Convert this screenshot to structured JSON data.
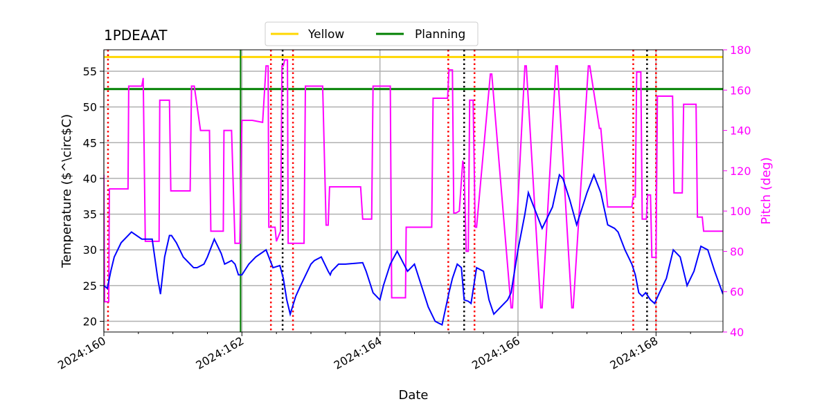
{
  "chart_data": {
    "type": "line",
    "title": "1PDEAAT",
    "xlabel": "Date",
    "ylabel": "Temperature ($^\\circ$C)",
    "y2label": "Pitch (deg)",
    "xlim": [
      160.0,
      168.97
    ],
    "ylim": [
      18.5,
      58.0
    ],
    "y2lim": [
      40,
      180
    ],
    "xticks": [
      160,
      162,
      164,
      166,
      168
    ],
    "xticklabels": [
      "2024:160",
      "2024:162",
      "2024:164",
      "2024:166",
      "2024:168"
    ],
    "yticks": [
      20,
      25,
      30,
      35,
      40,
      45,
      50,
      55
    ],
    "y2ticks": [
      40,
      60,
      80,
      100,
      120,
      140,
      160,
      180
    ],
    "grid": true,
    "legend": {
      "placement": "top-center",
      "entries": [
        {
          "label": "Yellow",
          "color": "#ffd700"
        },
        {
          "label": "Planning",
          "color": "#008000"
        }
      ]
    },
    "limits": [
      {
        "name": "Yellow",
        "value": 57.0,
        "color": "#ffd700"
      },
      {
        "name": "Planning",
        "value": 52.5,
        "color": "#008000"
      }
    ],
    "now_line": {
      "x": 161.98,
      "color": "#008000"
    },
    "red_vlines": [
      160.06,
      162.42,
      162.74,
      164.99,
      165.37,
      167.67,
      168.0
    ],
    "black_vlines": [
      162.59,
      165.22,
      167.87
    ],
    "series": [
      {
        "name": "Temperature",
        "axis": "left",
        "color": "#0000ff",
        "x": [
          160.0,
          160.05,
          160.1,
          160.15,
          160.25,
          160.4,
          160.55,
          160.62,
          160.7,
          160.78,
          160.82,
          160.88,
          160.95,
          160.98,
          161.05,
          161.15,
          161.25,
          161.3,
          161.35,
          161.45,
          161.5,
          161.6,
          161.7,
          161.75,
          161.85,
          161.9,
          161.95,
          162.0,
          162.1,
          162.2,
          162.35,
          162.45,
          162.55,
          162.6,
          162.65,
          162.7,
          162.78,
          162.85,
          162.9,
          163.0,
          163.05,
          163.15,
          163.25,
          163.28,
          163.3,
          163.4,
          163.5,
          163.75,
          163.8,
          163.9,
          164.0,
          164.05,
          164.15,
          164.25,
          164.4,
          164.5,
          164.6,
          164.7,
          164.8,
          164.9,
          165.0,
          165.05,
          165.12,
          165.18,
          165.22,
          165.28,
          165.32,
          165.4,
          165.5,
          165.58,
          165.65,
          165.75,
          165.85,
          165.9,
          166.0,
          166.1,
          166.15,
          166.25,
          166.35,
          166.5,
          166.6,
          166.65,
          166.75,
          166.85,
          167.0,
          167.1,
          167.2,
          167.3,
          167.4,
          167.45,
          167.55,
          167.65,
          167.7,
          167.75,
          167.8,
          167.85,
          167.92,
          167.98,
          168.05,
          168.15,
          168.25,
          168.35,
          168.45,
          168.55,
          168.65,
          168.75,
          168.85,
          168.97
        ],
        "y": [
          25.0,
          24.6,
          27.0,
          29.0,
          31.0,
          32.5,
          31.5,
          31.5,
          31.5,
          26.0,
          23.8,
          29.0,
          32.0,
          32.0,
          31.0,
          29.0,
          28.0,
          27.5,
          27.5,
          28.0,
          29.0,
          31.5,
          29.5,
          28.0,
          28.5,
          28.0,
          26.5,
          26.5,
          28.0,
          29.0,
          30.0,
          27.5,
          27.8,
          26.0,
          23.0,
          21.0,
          23.5,
          25.0,
          26.0,
          28.0,
          28.5,
          29.0,
          27.0,
          26.5,
          27.0,
          28.0,
          28.0,
          28.2,
          27.0,
          24.0,
          23.0,
          25.0,
          28.0,
          29.8,
          27.0,
          28.0,
          25.0,
          22.0,
          20.0,
          19.5,
          24.0,
          26.0,
          28.0,
          27.5,
          23.0,
          22.8,
          22.5,
          27.5,
          27.0,
          23.0,
          21.0,
          22.0,
          23.0,
          24.0,
          30.0,
          35.0,
          38.0,
          35.5,
          33.0,
          36.0,
          40.5,
          40.0,
          37.0,
          33.5,
          38.0,
          40.5,
          38.0,
          33.5,
          33.0,
          32.5,
          30.0,
          28.0,
          26.5,
          24.0,
          23.5,
          24.0,
          23.0,
          22.5,
          24.0,
          26.0,
          30.0,
          29.0,
          25.0,
          27.0,
          30.5,
          30.0,
          27.0,
          23.8
        ]
      },
      {
        "name": "Pitch",
        "axis": "right",
        "color": "#ff00ff",
        "x": [
          160.0,
          160.01,
          160.02,
          160.07,
          160.08,
          160.35,
          160.36,
          160.55,
          160.57,
          160.6,
          160.62,
          160.8,
          160.81,
          160.95,
          160.97,
          161.25,
          161.27,
          161.3,
          161.31,
          161.4,
          161.41,
          161.53,
          161.55,
          161.73,
          161.74,
          161.82,
          161.85,
          161.9,
          161.91,
          161.97,
          162.0,
          162.01,
          162.15,
          162.3,
          162.35,
          162.38,
          162.39,
          162.48,
          162.5,
          162.56,
          162.58,
          162.6,
          162.62,
          162.66,
          162.67,
          162.72,
          162.73,
          162.9,
          162.92,
          163.15,
          163.17,
          163.22,
          163.24,
          163.25,
          163.27,
          163.72,
          163.75,
          163.88,
          163.9,
          164.15,
          164.17,
          164.35,
          164.37,
          164.38,
          164.4,
          164.75,
          164.77,
          164.98,
          165.0,
          165.05,
          165.07,
          165.08,
          165.1,
          165.15,
          165.2,
          165.22,
          165.25,
          165.28,
          165.3,
          165.33,
          165.35,
          165.38,
          165.4,
          165.6,
          165.62,
          165.9,
          165.92,
          166.1,
          166.12,
          166.33,
          166.35,
          166.55,
          166.57,
          166.78,
          166.8,
          167.02,
          167.04,
          167.18,
          167.2,
          167.3,
          167.32,
          167.65,
          167.67,
          167.7,
          167.72,
          167.78,
          167.8,
          167.86,
          167.88,
          167.92,
          167.94,
          168.0,
          168.02,
          168.24,
          168.26,
          168.38,
          168.4,
          168.58,
          168.6,
          168.67,
          168.69,
          168.97
        ],
        "y": [
          118,
          55,
          55,
          55,
          111,
          111,
          162,
          162,
          166,
          85,
          85,
          85,
          155,
          155,
          110,
          110,
          162,
          162,
          162,
          140,
          140,
          140,
          90,
          90,
          140,
          140,
          140,
          84,
          84,
          84,
          145,
          145,
          145,
          144,
          172,
          172,
          92,
          92,
          85,
          90,
          172,
          172,
          175,
          175,
          84,
          84,
          84,
          84,
          162,
          162,
          162,
          93,
          93,
          93,
          112,
          112,
          96,
          96,
          162,
          162,
          57,
          57,
          57,
          92,
          92,
          92,
          156,
          156,
          170,
          170,
          99,
          99,
          99,
          100,
          125,
          120,
          80,
          80,
          155,
          155,
          155,
          92,
          92,
          168,
          168,
          52,
          52,
          172,
          172,
          52,
          52,
          172,
          172,
          52,
          52,
          172,
          172,
          141,
          141,
          102,
          102,
          102,
          107,
          107,
          169,
          169,
          96,
          96,
          108,
          108,
          77,
          77,
          157,
          157,
          109,
          109,
          153,
          153,
          97,
          97,
          90,
          90
        ]
      }
    ]
  }
}
